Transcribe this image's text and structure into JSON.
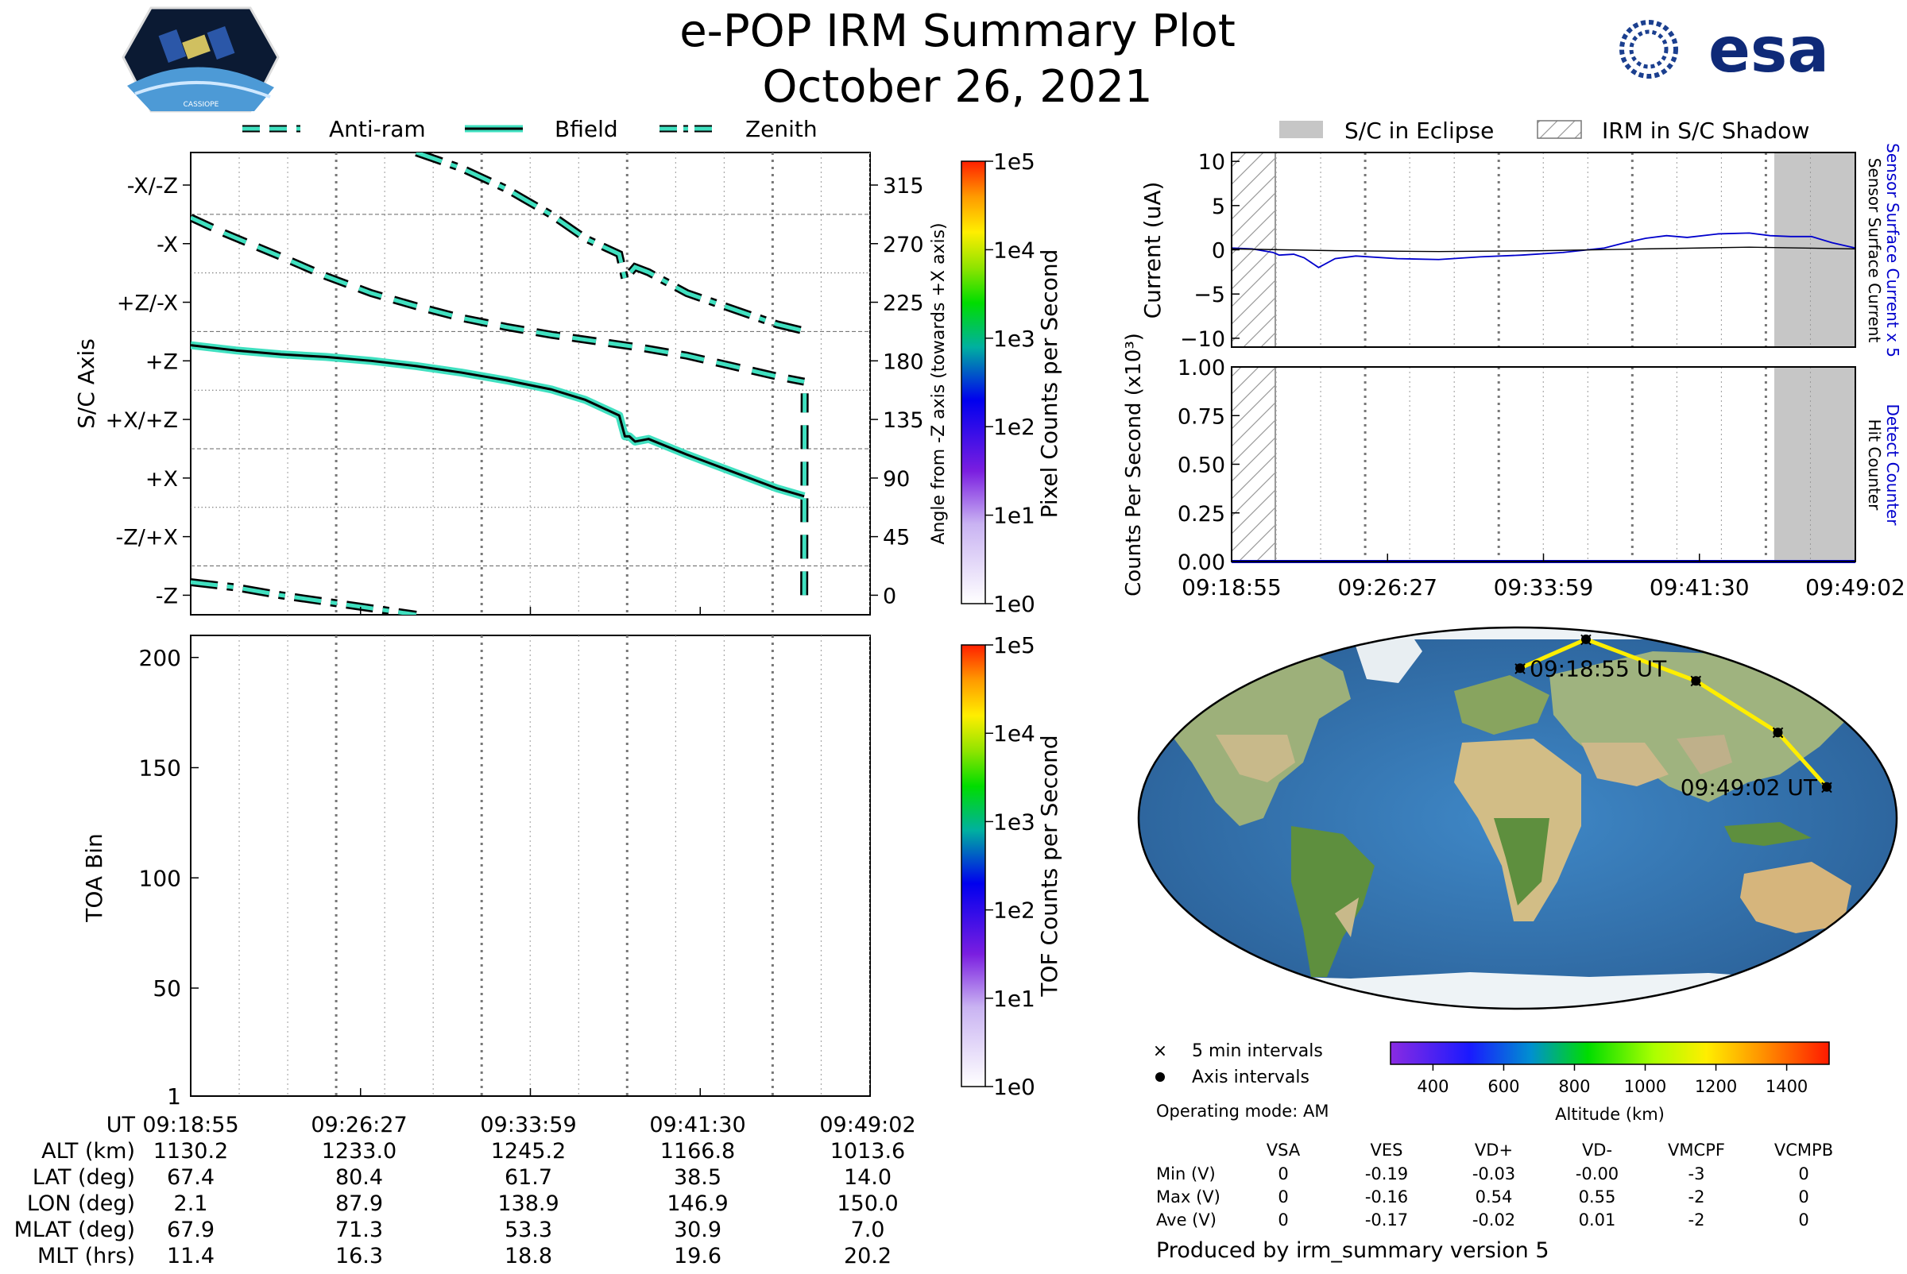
{
  "header": {
    "title": "e-POP IRM Summary Plot",
    "date": "October 26, 2021",
    "logo_left_text": "CASSIOPE",
    "logo_right_text": "esa"
  },
  "colors": {
    "attitude_line": "#40e0c0",
    "bfield_core": "#000000",
    "sensor_current": "#0000cc",
    "hit_counter": "#0000cc",
    "eclipse": "#c6c6c6",
    "track": "#ffee00"
  },
  "attitude_legend": [
    "Anti-ram",
    "Bfield",
    "Zenith"
  ],
  "eclipse_legend": [
    "S/C in Eclipse",
    "IRM in S/C Shadow"
  ],
  "time_ticks": [
    "09:18:55",
    "09:26:27",
    "09:33:59",
    "09:41:30",
    "09:49:02"
  ],
  "chart_data": [
    {
      "type": "line",
      "panel": "attitude",
      "ylabel": "S/C Axis",
      "ylabel_right": "Angle from -Z axis (towards +X axis)",
      "y_categories": [
        "-X/-Z",
        "-X",
        "+Z/-X",
        "+Z",
        "+X/+Z",
        "+X",
        "-Z/+X",
        "-Z"
      ],
      "y_right_ticks": [
        315,
        270,
        225,
        180,
        135,
        90,
        45,
        0
      ],
      "ylim": [
        -15,
        340
      ],
      "xlim": [
        0,
        30.12
      ],
      "series": [
        {
          "name": "Anti-ram",
          "x": [
            0,
            1.5,
            4,
            6,
            8,
            10,
            12,
            14,
            16,
            18,
            20,
            22,
            24,
            26,
            27.2
          ],
          "y": [
            290,
            278,
            260,
            245,
            232,
            222,
            213,
            206,
            200,
            195,
            190,
            184,
            176,
            168,
            164
          ]
        },
        {
          "name": "Anti-ram",
          "x": [
            27.2,
            27.22
          ],
          "y": [
            0,
            155
          ]
        },
        {
          "name": "Bfield",
          "x": [
            0,
            2,
            4,
            6,
            8,
            10,
            12,
            14,
            16,
            17.5,
            19,
            19.25,
            19.45,
            19.7,
            20.3,
            22,
            24,
            26,
            27.2
          ],
          "y": [
            192,
            188,
            185,
            183,
            180,
            176,
            171,
            165,
            158,
            150,
            138,
            122,
            122,
            118,
            120,
            108,
            95,
            82,
            76
          ]
        },
        {
          "name": "Zenith",
          "x": [
            10,
            12,
            14,
            16,
            17.5,
            19,
            19.25,
            19.5,
            19.7,
            20.3,
            22,
            24,
            26,
            27.2
          ],
          "y": [
            340,
            328,
            312,
            292,
            274,
            262,
            243,
            248,
            252,
            248,
            232,
            220,
            208,
            203
          ]
        },
        {
          "name": "Zenith",
          "x": [
            0,
            2,
            4,
            6,
            8,
            10
          ],
          "y": [
            10,
            6,
            0,
            -5,
            -10,
            -15
          ]
        }
      ]
    },
    {
      "type": "heatmap",
      "panel": "toa",
      "ylabel": "TOA Bin",
      "y_ticks": [
        1,
        50,
        100,
        150,
        200
      ],
      "ylim": [
        1,
        210
      ],
      "colorbar_label": "TOF Counts per Second",
      "colorbar_ticks": [
        "1e5",
        "1e4",
        "1e3",
        "1e2",
        "1e1",
        "1e0"
      ]
    },
    {
      "type": "heatmap",
      "panel": "pixel-colorbar",
      "colorbar_label": "Pixel Counts per Second",
      "colorbar_ticks": [
        "1e5",
        "1e4",
        "1e3",
        "1e2",
        "1e1",
        "1e0"
      ]
    },
    {
      "type": "line",
      "panel": "current",
      "ylabel": "Current (uA)",
      "y_ticks": [
        10,
        5,
        0,
        -5,
        -10
      ],
      "ylim": [
        -11,
        11
      ],
      "right_labels": [
        "Sensor Surface Current x 5",
        "Sensor Surface Current"
      ],
      "series": [
        {
          "name": "Sensor Surface Current x 5",
          "x": [
            0,
            1,
            2,
            2.3,
            3,
            3.5,
            4.2,
            5,
            6,
            8,
            10,
            12,
            14,
            16,
            18,
            19,
            20,
            21,
            22,
            23.5,
            25,
            26,
            27,
            28,
            29,
            30.12
          ],
          "y": [
            0.2,
            0.1,
            -0.3,
            -0.6,
            -0.5,
            -0.9,
            -2.0,
            -1.0,
            -0.7,
            -1.0,
            -1.1,
            -0.8,
            -0.6,
            -0.3,
            0.2,
            0.8,
            1.3,
            1.6,
            1.4,
            1.8,
            1.9,
            1.6,
            1.5,
            1.5,
            0.8,
            0.2
          ]
        },
        {
          "name": "Sensor Surface Current",
          "x": [
            0,
            5,
            10,
            15,
            20,
            25,
            30.12
          ],
          "y": [
            0.1,
            -0.1,
            -0.2,
            -0.1,
            0.1,
            0.3,
            0.1
          ]
        }
      ]
    },
    {
      "type": "line",
      "panel": "counts",
      "ylabel": "Counts Per Second (x10³)",
      "y_ticks": [
        "1.00",
        "0.75",
        "0.50",
        "0.25",
        "0.00"
      ],
      "ylim": [
        0,
        1
      ],
      "right_labels": [
        "Detect Counter",
        "Hit Counter"
      ],
      "series": [
        {
          "name": "Detect Counter",
          "x": [
            0,
            30.12
          ],
          "y": [
            0,
            0
          ]
        }
      ]
    },
    {
      "type": "scatter",
      "panel": "map",
      "track_labels": [
        "09:18:55 UT",
        "09:49:02 UT"
      ],
      "lon": [
        2.1,
        87.9,
        138.9,
        146.9,
        150.0
      ],
      "lat": [
        67.4,
        80.4,
        61.7,
        38.5,
        14.0
      ],
      "colorbar_label": "Altitude (km)",
      "colorbar_ticks": [
        400,
        600,
        800,
        1000,
        1200,
        1400
      ],
      "legend": [
        "5 min intervals",
        "Axis intervals"
      ]
    }
  ],
  "info_table": {
    "rows": [
      {
        "label": "UT",
        "values": [
          "09:18:55",
          "09:26:27",
          "09:33:59",
          "09:41:30",
          "09:49:02"
        ]
      },
      {
        "label": "ALT (km)",
        "values": [
          "1130.2",
          "1233.0",
          "1245.2",
          "1166.8",
          "1013.6"
        ]
      },
      {
        "label": "LAT (deg)",
        "values": [
          "67.4",
          "80.4",
          "61.7",
          "38.5",
          "14.0"
        ]
      },
      {
        "label": "LON (deg)",
        "values": [
          "2.1",
          "87.9",
          "138.9",
          "146.9",
          "150.0"
        ]
      },
      {
        "label": "MLAT (deg)",
        "values": [
          "67.9",
          "71.3",
          "53.3",
          "30.9",
          "7.0"
        ]
      },
      {
        "label": "MLT (hrs)",
        "values": [
          "11.4",
          "16.3",
          "18.8",
          "19.6",
          "20.2"
        ]
      }
    ]
  },
  "operating_mode": "Operating mode: AM",
  "voltage_table": {
    "headers": [
      "VSA",
      "VES",
      "VD+",
      "VD-",
      "VMCPF",
      "VCMPB"
    ],
    "rows": [
      {
        "label": "Min (V)",
        "values": [
          "0",
          "-0.19",
          "-0.03",
          "-0.00",
          "-3",
          "0"
        ]
      },
      {
        "label": "Max (V)",
        "values": [
          "0",
          "-0.16",
          "0.54",
          "0.55",
          "-2",
          "0"
        ]
      },
      {
        "label": "Ave (V)",
        "values": [
          "0",
          "-0.17",
          "-0.02",
          "0.01",
          "-2",
          "0"
        ]
      }
    ]
  },
  "footer": "Produced by irm_summary version 5"
}
